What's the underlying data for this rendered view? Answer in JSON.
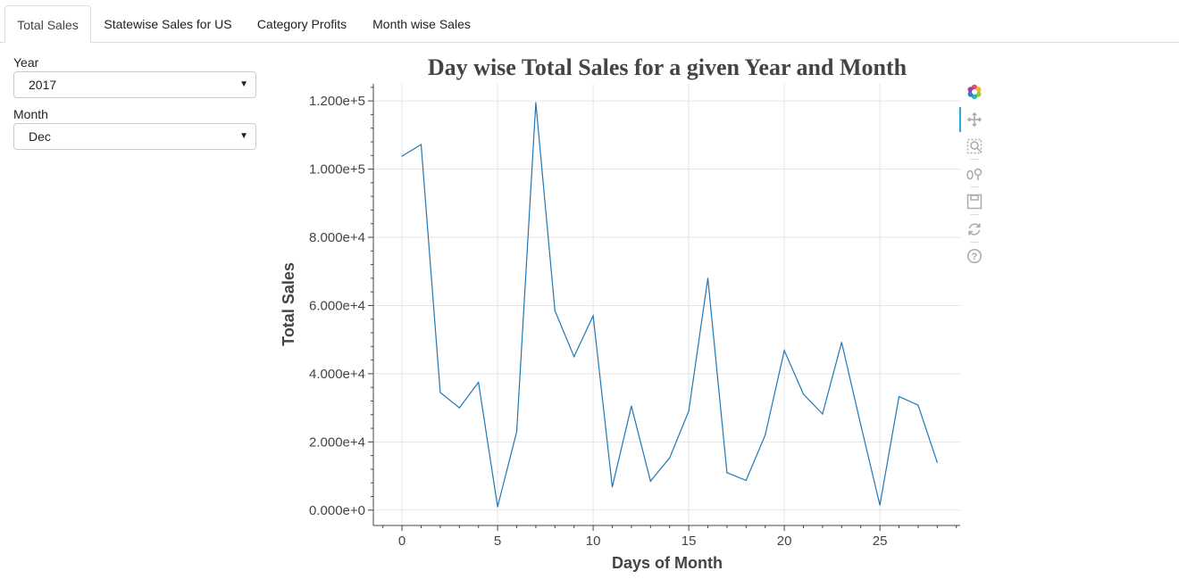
{
  "tabs": [
    {
      "label": "Total Sales",
      "active": true
    },
    {
      "label": "Statewise Sales for US",
      "active": false
    },
    {
      "label": "Category Profits",
      "active": false
    },
    {
      "label": "Month wise Sales",
      "active": false
    }
  ],
  "controls": {
    "year": {
      "label": "Year",
      "value": "2017"
    },
    "month": {
      "label": "Month",
      "value": "Dec"
    }
  },
  "toolbar": {
    "icons": [
      "bokeh-logo-icon",
      "pan-icon",
      "box-zoom-icon",
      "wheel-zoom-icon",
      "save-icon",
      "reset-icon",
      "help-icon"
    ]
  },
  "colors": {
    "line": "#1f77b4",
    "title": "#444444",
    "axis": "#444444",
    "grid": "#e5e5e5",
    "accent": "#26aae1"
  },
  "chart_data": {
    "type": "line",
    "title": "Day wise Total Sales for a given Year and Month",
    "xlabel": "Days of Month",
    "ylabel": "Total Sales",
    "grid": true,
    "xlim": [
      -1.5,
      29.2
    ],
    "ylim": [
      -4500,
      125000
    ],
    "x_ticks": [
      0,
      5,
      10,
      15,
      20,
      25
    ],
    "x_tick_labels": [
      "0",
      "5",
      "10",
      "15",
      "20",
      "25"
    ],
    "y_ticks": [
      0,
      20000,
      40000,
      60000,
      80000,
      100000,
      120000
    ],
    "y_tick_labels": [
      "0.000e+0",
      "2.000e+4",
      "4.000e+4",
      "6.000e+4",
      "8.000e+4",
      "1.000e+5",
      "1.200e+5"
    ],
    "series": [
      {
        "x": [
          0,
          1,
          2,
          3,
          4,
          5,
          6,
          7,
          8,
          9,
          10,
          11,
          12,
          13,
          14,
          15,
          16,
          17,
          18,
          19,
          20,
          21,
          22,
          23,
          24,
          25,
          26,
          27,
          28
        ],
        "values": [
          103800,
          107200,
          34500,
          30000,
          37500,
          1000,
          23000,
          119500,
          58500,
          45000,
          57000,
          6800,
          30500,
          8500,
          15300,
          29000,
          68000,
          11000,
          8700,
          22000,
          46800,
          34000,
          28200,
          49200,
          25000,
          1500,
          33300,
          30800,
          14000
        ]
      }
    ]
  }
}
